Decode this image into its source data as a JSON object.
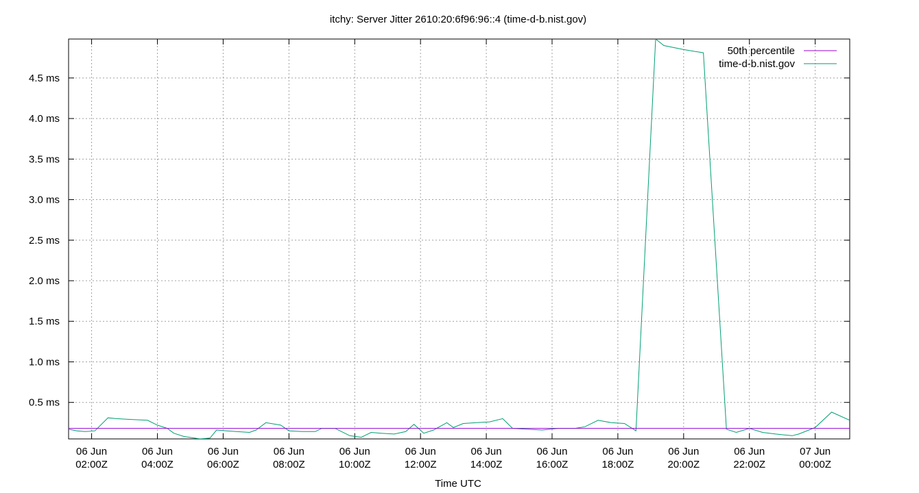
{
  "chart_data": {
    "type": "line",
    "title": "itchy: Server Jitter 2610:20:6f96:96::4 (time-d-b.nist.gov)",
    "xlabel": "Time UTC",
    "ylabel": "",
    "x_unit": "hours UTC",
    "xlim": [
      1.3,
      25.05
    ],
    "ylim": [
      0.05,
      4.98
    ],
    "yticks": [
      0.5,
      1.0,
      1.5,
      2.0,
      2.5,
      3.0,
      3.5,
      4.0,
      4.5
    ],
    "ytick_labels": [
      "0.5 ms",
      "1.0 ms",
      "1.5 ms",
      "2.0 ms",
      "2.5 ms",
      "3.0 ms",
      "3.5 ms",
      "4.0 ms",
      "4.5 ms"
    ],
    "xticks": [
      2,
      4,
      6,
      8,
      10,
      12,
      14,
      16,
      18,
      20,
      22,
      24
    ],
    "xtick_labels": [
      [
        "06 Jun",
        "02:00Z"
      ],
      [
        "06 Jun",
        "04:00Z"
      ],
      [
        "06 Jun",
        "06:00Z"
      ],
      [
        "06 Jun",
        "08:00Z"
      ],
      [
        "06 Jun",
        "10:00Z"
      ],
      [
        "06 Jun",
        "12:00Z"
      ],
      [
        "06 Jun",
        "14:00Z"
      ],
      [
        "06 Jun",
        "16:00Z"
      ],
      [
        "06 Jun",
        "18:00Z"
      ],
      [
        "06 Jun",
        "20:00Z"
      ],
      [
        "06 Jun",
        "22:00Z"
      ],
      [
        "07 Jun",
        "00:00Z"
      ]
    ],
    "grid": true,
    "legend_position": "top-right",
    "series": [
      {
        "name": "50th percentile",
        "color": "#9400d3",
        "x": [
          1.3,
          25.05
        ],
        "y": [
          0.18,
          0.18
        ]
      },
      {
        "name": "time-d-b.nist.gov",
        "color": "#009e73",
        "x": [
          1.3,
          1.55,
          1.8,
          2.1,
          2.5,
          2.75,
          3.2,
          3.7,
          4.0,
          4.3,
          4.5,
          4.8,
          5.3,
          5.6,
          5.8,
          6.1,
          6.4,
          6.8,
          7.0,
          7.3,
          7.75,
          8.0,
          8.4,
          8.8,
          9.0,
          9.4,
          9.85,
          10.2,
          10.5,
          10.8,
          11.2,
          11.55,
          11.8,
          12.1,
          12.4,
          12.8,
          13.0,
          13.3,
          13.7,
          14.1,
          14.5,
          14.8,
          15.2,
          15.7,
          16.2,
          16.7,
          17.0,
          17.4,
          17.8,
          18.2,
          18.55,
          19.15,
          19.4,
          20.0,
          20.6,
          21.3,
          21.6,
          22.0,
          22.4,
          22.8,
          23.3,
          23.5,
          24.0,
          24.5,
          25.05
        ],
        "y": [
          0.17,
          0.15,
          0.14,
          0.15,
          0.31,
          0.3,
          0.29,
          0.28,
          0.22,
          0.18,
          0.12,
          0.08,
          0.05,
          0.06,
          0.16,
          0.15,
          0.14,
          0.13,
          0.16,
          0.25,
          0.22,
          0.15,
          0.14,
          0.14,
          0.18,
          0.18,
          0.09,
          0.07,
          0.13,
          0.12,
          0.11,
          0.14,
          0.23,
          0.12,
          0.16,
          0.25,
          0.19,
          0.24,
          0.25,
          0.26,
          0.3,
          0.18,
          0.17,
          0.16,
          0.18,
          0.18,
          0.2,
          0.28,
          0.25,
          0.24,
          0.15,
          4.98,
          4.9,
          4.85,
          4.81,
          0.17,
          0.13,
          0.18,
          0.13,
          0.11,
          0.09,
          0.11,
          0.19,
          0.38,
          0.28
        ]
      }
    ]
  }
}
